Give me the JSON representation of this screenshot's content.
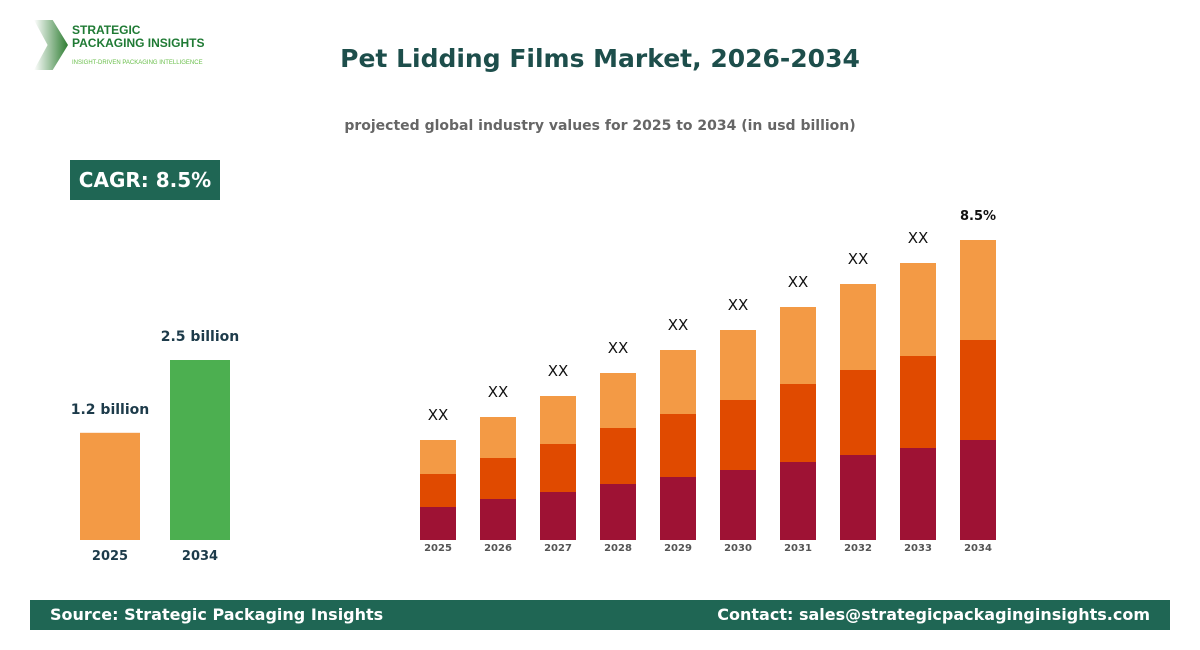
{
  "logo": {
    "line1": "STRATEGIC",
    "line2": "PACKAGING INSIGHTS",
    "tagline": "INSIGHT-DRIVEN PACKAGING INTELLIGENCE"
  },
  "title": "Pet Lidding Films Market, 2026-2034",
  "subtitle": "projected global industry values for 2025 to 2034 (in usd billion)",
  "cagr": "CAGR: 8.5%",
  "footer": {
    "source": "Source: Strategic Packaging Insights",
    "contact": "Contact: sales@strategicpackaginginsights.com"
  },
  "chart_data": [
    {
      "type": "bar",
      "categories": [
        "2025",
        "2034"
      ],
      "values": [
        1.2,
        2.5
      ],
      "data_labels": [
        "1.2 billion",
        "2.5 billion"
      ],
      "colors": [
        "#f39a45",
        "#4caf50"
      ]
    },
    {
      "type": "bar",
      "stacked": true,
      "categories": [
        "2025",
        "2026",
        "2027",
        "2028",
        "2029",
        "2030",
        "2031",
        "2032",
        "2033",
        "2034"
      ],
      "series": [
        {
          "color": "#9e1234",
          "values": [
            33,
            41,
            48,
            56,
            63,
            70,
            78,
            85,
            92,
            100
          ]
        },
        {
          "color": "#e04a00",
          "values": [
            33,
            41,
            48,
            56,
            63,
            70,
            78,
            85,
            92,
            100
          ]
        },
        {
          "color": "#f39a45",
          "values": [
            34,
            41,
            48,
            55,
            64,
            70,
            77,
            86,
            93,
            100
          ]
        }
      ],
      "data_labels": [
        "XX",
        "XX",
        "XX",
        "XX",
        "XX",
        "XX",
        "XX",
        "XX",
        "XX",
        "8.5%"
      ],
      "value_units": "relative (no axis shown)"
    }
  ]
}
